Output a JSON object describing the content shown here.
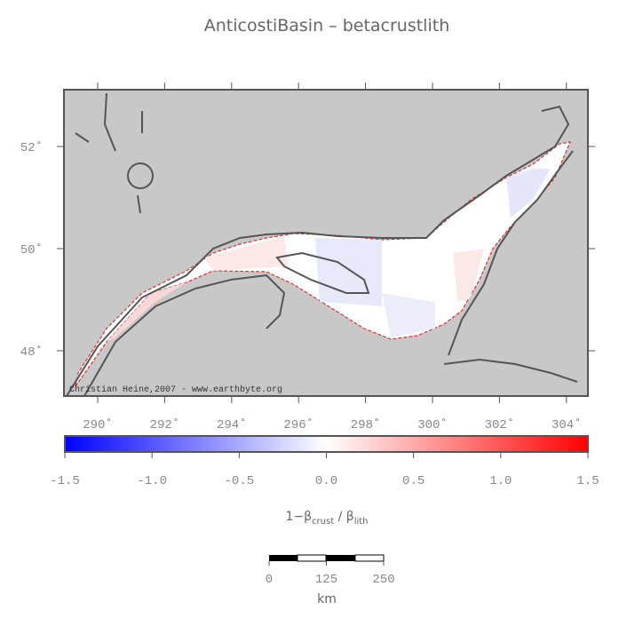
{
  "title": "AnticostiBasin – betacrustlith",
  "map": {
    "credit": "Christian Heine,2007 - www.earthbyte.org",
    "lon_ticks": [
      {
        "value": 290,
        "label": "290˚"
      },
      {
        "value": 292,
        "label": "292˚"
      },
      {
        "value": 294,
        "label": "294˚"
      },
      {
        "value": 296,
        "label": "296˚"
      },
      {
        "value": 298,
        "label": "298˚"
      },
      {
        "value": 300,
        "label": "300˚"
      },
      {
        "value": 302,
        "label": "302˚"
      },
      {
        "value": 304,
        "label": "304˚"
      }
    ],
    "lat_ticks": [
      {
        "value": 48,
        "label": "48˚"
      },
      {
        "value": 50,
        "label": "50˚"
      },
      {
        "value": 52,
        "label": "52˚"
      }
    ]
  },
  "colorbar": {
    "ticks": [
      -1.5,
      {
        "value": -1,
        "label": "-1.0"
      },
      -0.5,
      {
        "value": 0,
        "label": "0.0"
      },
      0.5,
      {
        "value": 1,
        "label": "1.0"
      },
      1.5
    ],
    "label": {
      "prefix": "1−β",
      "sub1": "crust",
      "mid": " / β",
      "sub2": "lith"
    }
  },
  "scalebar": {
    "ticks": [
      0,
      125,
      250
    ],
    "unit": "km"
  }
}
